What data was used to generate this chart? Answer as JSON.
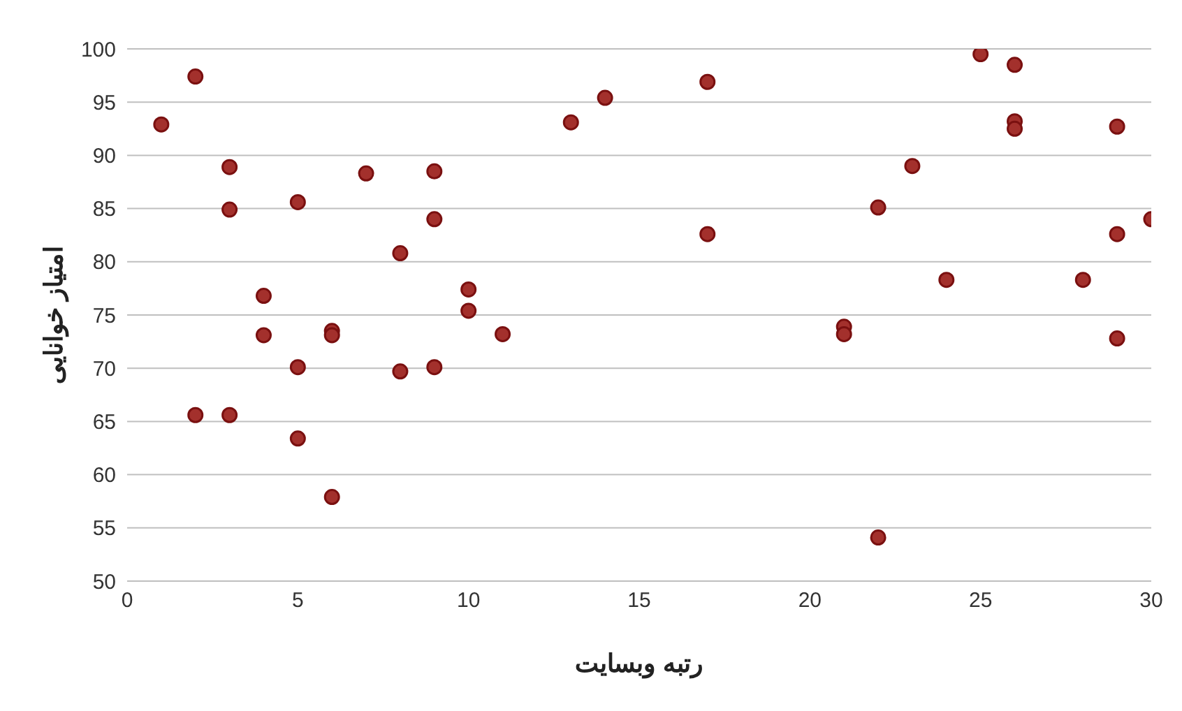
{
  "chart_data": {
    "type": "scatter",
    "xlabel": "رتبه وبسایت",
    "ylabel": "امتیاز خوانایی",
    "x": [
      1,
      2,
      2,
      3,
      3,
      3,
      4,
      4,
      5,
      5,
      5,
      6,
      6,
      6,
      7,
      8,
      8,
      9,
      9,
      9,
      10,
      10,
      11,
      13,
      14,
      17,
      17,
      21,
      21,
      22,
      22,
      23,
      24,
      25,
      26,
      26,
      26,
      28,
      29,
      29,
      29,
      30
    ],
    "series": [
      {
        "color": "#a3302c",
        "values": [
          92.9,
          97.4,
          65.6,
          88.9,
          84.9,
          65.6,
          76.8,
          73.1,
          85.6,
          70.1,
          63.4,
          73.5,
          73.1,
          57.9,
          88.3,
          80.8,
          69.7,
          88.5,
          84.0,
          70.1,
          77.4,
          75.4,
          73.2,
          93.1,
          95.4,
          96.9,
          82.6,
          73.9,
          73.2,
          85.1,
          54.1,
          89.0,
          78.3,
          99.5,
          98.5,
          93.2,
          92.5,
          78.3,
          92.7,
          82.6,
          72.8,
          84.0
        ]
      }
    ],
    "xlim": [
      0,
      30
    ],
    "xticks": [
      0,
      5,
      10,
      15,
      20,
      25,
      30
    ],
    "ylim": [
      50,
      100
    ],
    "yticks": [
      50,
      55,
      60,
      65,
      70,
      75,
      80,
      85,
      90,
      95,
      100
    ],
    "grid": "y",
    "marker": "circle"
  }
}
